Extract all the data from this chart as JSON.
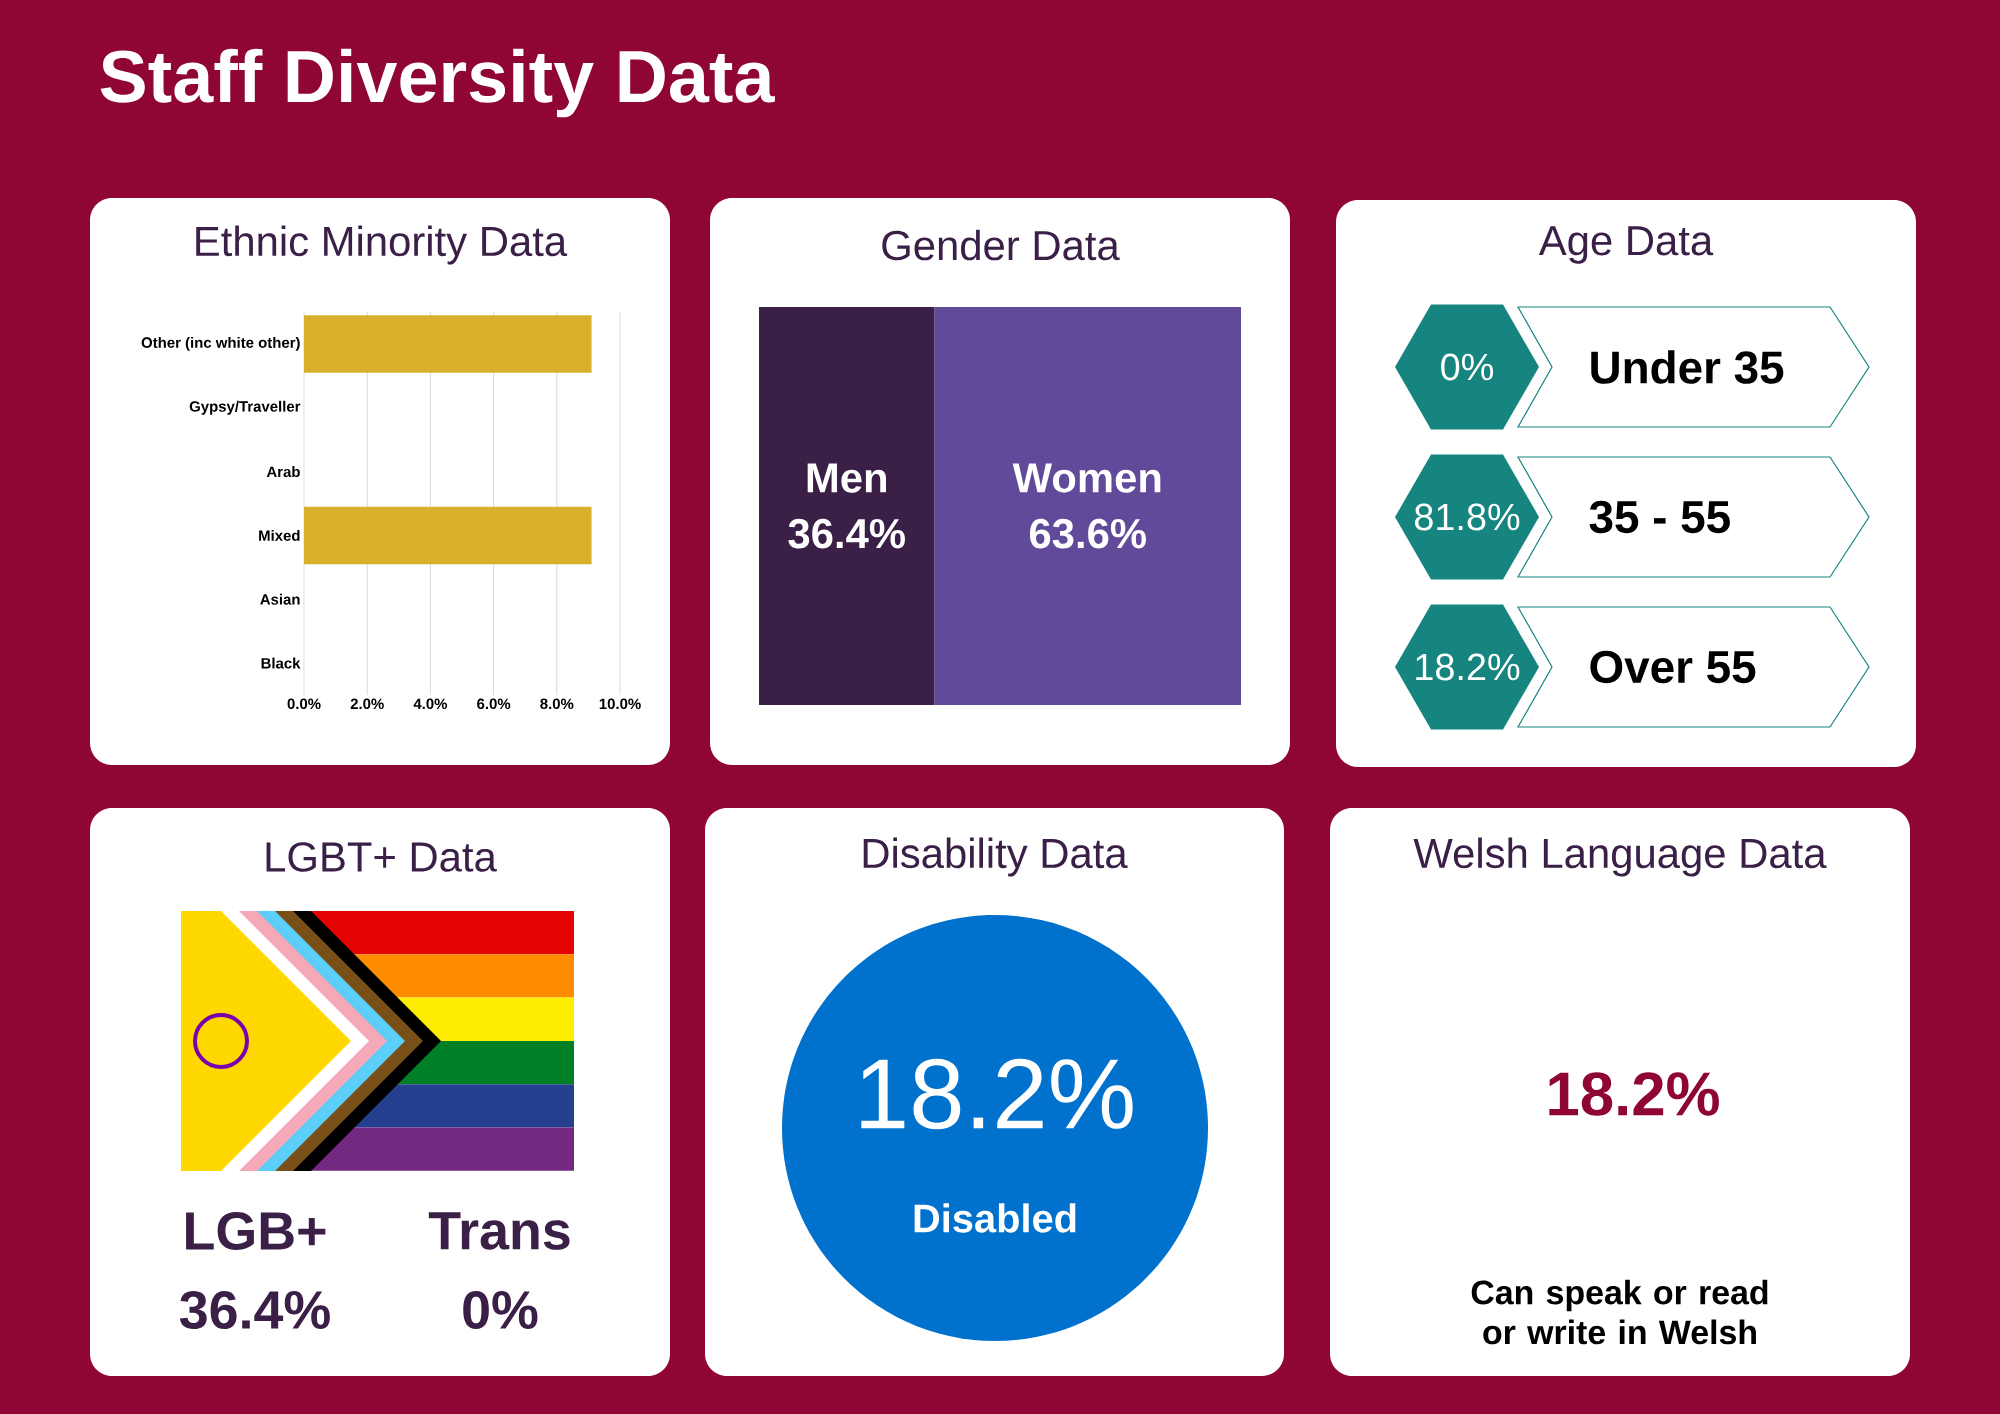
{
  "chart_data": [
    {
      "type": "other",
      "title": "Staff Diversity Data"
    },
    {
      "type": "bar",
      "title": "Ethnic Minority Data",
      "orientation": "horizontal",
      "categories": [
        "Other (inc white other)",
        "Gypsy/Traveller",
        "Arab",
        "Mixed",
        "Asian",
        "Black"
      ],
      "values": [
        9.1,
        0,
        0,
        9.1,
        0,
        0
      ],
      "color": "#d9b02b",
      "xlim": [
        0,
        10
      ],
      "xticks": [
        {
          "value": 0,
          "label": "0.0%"
        },
        {
          "value": 2,
          "label": "2.0%"
        },
        {
          "value": 4,
          "label": "4.0%"
        },
        {
          "value": 6,
          "label": "6.0%"
        },
        {
          "value": 8,
          "label": "8.0%"
        },
        {
          "value": 10,
          "label": "10.0%"
        }
      ],
      "grid": "x"
    },
    {
      "type": "bar",
      "title": "Gender Data",
      "orientation": "horizontal",
      "stacked": true,
      "categories": [
        null
      ],
      "series": [
        {
          "name": "Men",
          "color": "#3a1f47",
          "values": [
            36.4
          ],
          "value_labels": [
            "36.4%"
          ]
        },
        {
          "name": "Women",
          "color": "#614a99",
          "values": [
            63.6
          ],
          "value_labels": [
            "63.6%"
          ]
        }
      ]
    },
    {
      "type": "other",
      "title": "Age Data",
      "categories": [
        "Under 35",
        "35 - 55",
        "Over 55"
      ],
      "values": [
        0,
        81.8,
        18.2
      ],
      "value_labels": [
        "0%",
        "81.8%",
        "18.2%"
      ],
      "color": "#17857f"
    },
    {
      "type": "other",
      "title": "LGBT+ Data",
      "categories": [
        "LGB+",
        "Trans"
      ],
      "values": [
        36.4,
        0
      ],
      "value_labels": [
        "36.4%",
        "0%"
      ]
    },
    {
      "type": "other",
      "title": "Disability Data",
      "categories": [
        "Disabled"
      ],
      "values": [
        18.2
      ],
      "value_labels": [
        "18.2%"
      ],
      "color": "#0072ce"
    },
    {
      "type": "other",
      "title": "Welsh Language Data",
      "categories": [
        "Can speak or read or write in Welsh"
      ],
      "values": [
        18.2
      ],
      "value_labels": [
        "18.2%"
      ]
    }
  ]
}
